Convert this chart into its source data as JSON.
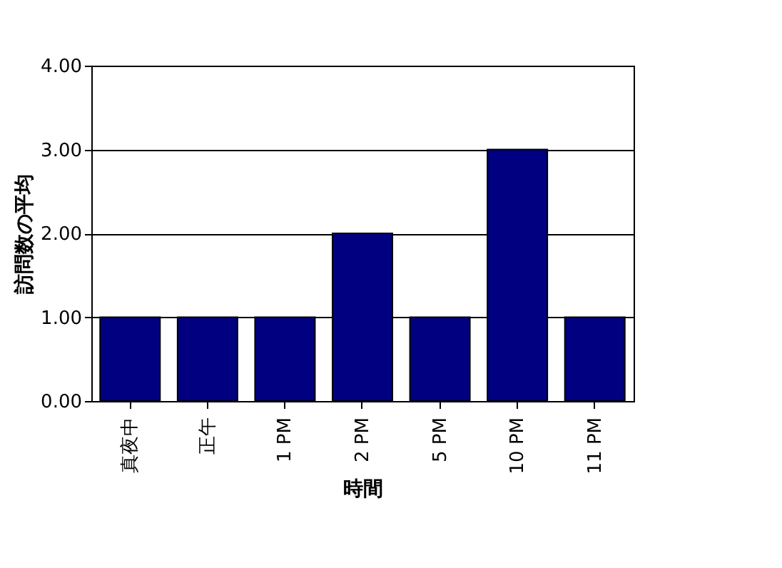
{
  "chart_data": {
    "type": "bar",
    "xlabel": "時間",
    "ylabel": "訪問数の平均",
    "categories": [
      "真夜中",
      "正午",
      "1 PM",
      "2 PM",
      "5 PM",
      "10 PM",
      "11 PM"
    ],
    "values": [
      1,
      1,
      1,
      2,
      1,
      3,
      1
    ],
    "color": "#000080",
    "ylim": [
      0,
      4
    ],
    "yticks": [
      {
        "value": 0,
        "label": "0.00"
      },
      {
        "value": 1,
        "label": "1.00"
      },
      {
        "value": 2,
        "label": "2.00"
      },
      {
        "value": 3,
        "label": "3.00"
      },
      {
        "value": 4,
        "label": "4.00"
      }
    ],
    "grid": "y"
  }
}
